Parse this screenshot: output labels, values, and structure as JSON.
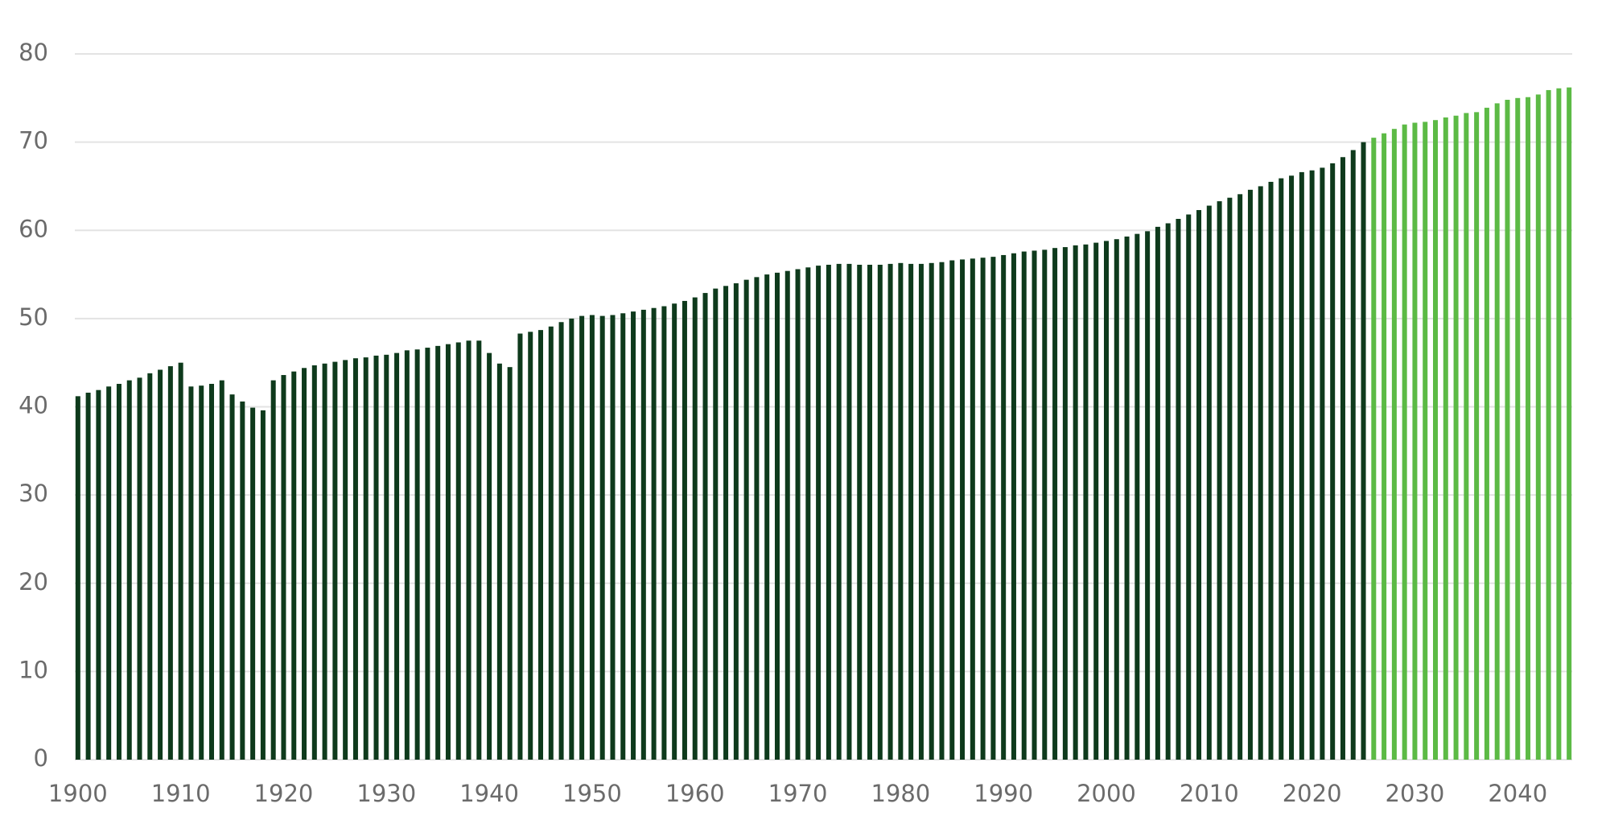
{
  "chart_data": {
    "type": "bar",
    "xlim": [
      1899.7,
      2045.3
    ],
    "xticks": [
      1900,
      1910,
      1920,
      1930,
      1940,
      1950,
      1960,
      1970,
      1980,
      1990,
      2000,
      2010,
      2020,
      2030,
      2040
    ],
    "ylim": [
      0,
      80
    ],
    "yticks": [
      0,
      10,
      20,
      30,
      40,
      50,
      60,
      70,
      80
    ],
    "grid": true,
    "series": [
      {
        "color": "#0e3a1c",
        "x": [
          1900,
          1901,
          1902,
          1903,
          1904,
          1905,
          1906,
          1907,
          1908,
          1909,
          1910,
          1911,
          1912,
          1913,
          1914,
          1915,
          1916,
          1917,
          1918,
          1919,
          1920,
          1921,
          1922,
          1923,
          1924,
          1925,
          1926,
          1927,
          1928,
          1929,
          1930,
          1931,
          1932,
          1933,
          1934,
          1935,
          1936,
          1937,
          1938,
          1939,
          1940,
          1941,
          1942,
          1943,
          1944,
          1945,
          1946,
          1947,
          1948,
          1949,
          1950,
          1951,
          1952,
          1953,
          1954,
          1955,
          1956,
          1957,
          1958,
          1959,
          1960,
          1961,
          1962,
          1963,
          1964,
          1965,
          1966,
          1967,
          1968,
          1969,
          1970,
          1971,
          1972,
          1973,
          1974,
          1975,
          1976,
          1977,
          1978,
          1979,
          1980,
          1981,
          1982,
          1983,
          1984,
          1985,
          1986,
          1987,
          1988,
          1989,
          1990,
          1991,
          1992,
          1993,
          1994,
          1995,
          1996,
          1997,
          1998,
          1999,
          2000,
          2001,
          2002,
          2003,
          2004,
          2005,
          2006,
          2007,
          2008,
          2009,
          2010,
          2011,
          2012,
          2013,
          2014,
          2015,
          2016,
          2017,
          2018,
          2019,
          2020,
          2021,
          2022,
          2023,
          2024,
          2025
        ],
        "values": [
          41.2,
          41.6,
          41.9,
          42.3,
          42.6,
          43,
          43.3,
          43.8,
          44.2,
          44.6,
          45,
          42.3,
          42.4,
          42.6,
          43,
          41.4,
          40.6,
          39.9,
          39.6,
          43,
          43.6,
          44,
          44.4,
          44.7,
          44.9,
          45.1,
          45.3,
          45.5,
          45.6,
          45.8,
          45.9,
          46.1,
          46.4,
          46.5,
          46.7,
          46.9,
          47.1,
          47.3,
          47.5,
          47.5,
          46.1,
          44.9,
          44.5,
          48.3,
          48.5,
          48.7,
          49.1,
          49.6,
          50,
          50.3,
          50.4,
          50.3,
          50.4,
          50.6,
          50.8,
          51,
          51.2,
          51.4,
          51.7,
          52,
          52.4,
          52.9,
          53.4,
          53.7,
          54,
          54.4,
          54.7,
          55,
          55.2,
          55.4,
          55.6,
          55.8,
          56,
          56.1,
          56.2,
          56.2,
          56.1,
          56.1,
          56.1,
          56.2,
          56.3,
          56.2,
          56.2,
          56.3,
          56.4,
          56.6,
          56.7,
          56.8,
          56.9,
          57,
          57.2,
          57.4,
          57.6,
          57.7,
          57.8,
          58,
          58.1,
          58.3,
          58.4,
          58.6,
          58.8,
          59,
          59.3,
          59.6,
          59.9,
          60.4,
          60.8,
          61.3,
          61.8,
          62.3,
          62.8,
          63.3,
          63.7,
          64.1,
          64.6,
          65,
          65.5,
          65.9,
          66.2,
          66.6,
          66.8,
          67.1,
          67.6,
          68.3,
          69.1,
          70
        ]
      },
      {
        "color": "#5cba45",
        "x": [
          2026,
          2027,
          2028,
          2029,
          2030,
          2031,
          2032,
          2033,
          2034,
          2035,
          2036,
          2037,
          2038,
          2039,
          2040,
          2041,
          2042,
          2043,
          2044,
          2045
        ],
        "values": [
          70.5,
          71,
          71.5,
          72,
          72.2,
          72.3,
          72.5,
          72.8,
          73,
          73.3,
          73.4,
          73.9,
          74.4,
          74.8,
          75,
          75.1,
          75.4,
          75.9,
          76.1,
          76.2
        ]
      }
    ]
  }
}
